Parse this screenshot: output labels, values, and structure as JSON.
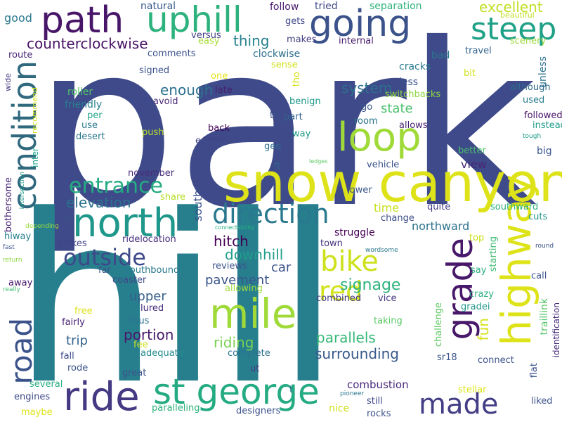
{
  "words": [
    {
      "text": "park",
      "color": "#3e4a89"
    },
    {
      "text": "hill",
      "color": "#277f8e"
    },
    {
      "text": "snow canyon",
      "color": "#dde318"
    },
    {
      "text": "highway",
      "color": "#dde318"
    },
    {
      "text": "st george",
      "color": "#25ab82"
    },
    {
      "text": "mile",
      "color": "#a0da39"
    },
    {
      "text": "ride",
      "color": "#443983"
    },
    {
      "text": "north",
      "color": "#1f988b"
    },
    {
      "text": "uphill",
      "color": "#2db27d"
    },
    {
      "text": "path",
      "color": "#481668"
    },
    {
      "text": "going",
      "color": "#3b528b"
    },
    {
      "text": "loop",
      "color": "#a0da39"
    },
    {
      "text": "condition",
      "color": "#30697e"
    },
    {
      "text": "road",
      "color": "#3b528b"
    },
    {
      "text": "grade",
      "color": "#48186a"
    },
    {
      "text": "steep",
      "color": "#1fa187"
    },
    {
      "text": "made",
      "color": "#433e85"
    },
    {
      "text": "direction",
      "color": "#2a788e"
    },
    {
      "text": "red",
      "color": "#d2e21b"
    },
    {
      "text": "bike",
      "color": "#cde11d"
    },
    {
      "text": "outside",
      "color": "#3e4989"
    },
    {
      "text": "entrance",
      "color": "#25ab82"
    },
    {
      "text": "excellent",
      "color": "#c0df25"
    },
    {
      "text": "counterclockwise",
      "color": "#471365"
    },
    {
      "text": "surrounding",
      "color": "#38598c"
    },
    {
      "text": "signage",
      "color": "#2db27d"
    },
    {
      "text": "parallels",
      "color": "#37b878"
    },
    {
      "text": "pavement",
      "color": "#39558c"
    },
    {
      "text": "combustion",
      "color": "#482979"
    },
    {
      "text": "system",
      "color": "#2e6f8e"
    },
    {
      "text": "state",
      "color": "#4ac16d"
    },
    {
      "text": "elevation",
      "color": "#2c728e"
    },
    {
      "text": "thing",
      "color": "#26828e"
    },
    {
      "text": "enough",
      "color": "#2c728e"
    },
    {
      "text": "hitch",
      "color": "#440154"
    },
    {
      "text": "downhill",
      "color": "#1f9e89"
    },
    {
      "text": "car",
      "color": "#3b528b"
    },
    {
      "text": "upper",
      "color": "#355f8d"
    },
    {
      "text": "portion",
      "color": "#481668"
    },
    {
      "text": "trip",
      "color": "#33638d"
    },
    {
      "text": "riding",
      "color": "#7ad151"
    },
    {
      "text": "northward",
      "color": "#2c728e"
    },
    {
      "text": "view",
      "color": "#482575"
    },
    {
      "text": "time",
      "color": "#c8e020"
    },
    {
      "text": "fun",
      "color": "#d5e21a"
    },
    {
      "text": "south",
      "color": "#3b528b"
    },
    {
      "text": "good",
      "color": "#2a788e"
    },
    {
      "text": "natural",
      "color": "#38598c"
    },
    {
      "text": "follow",
      "color": "#481a6c"
    },
    {
      "text": "tried",
      "color": "#3f4788"
    },
    {
      "text": "separation",
      "color": "#2db27d"
    },
    {
      "text": "beautiful",
      "color": "#c2df23"
    },
    {
      "text": "versus",
      "color": "#424086"
    },
    {
      "text": "gets",
      "color": "#404688"
    },
    {
      "text": "makes",
      "color": "#433e85"
    },
    {
      "text": "internal",
      "color": "#481b6d"
    },
    {
      "text": "travel",
      "color": "#33638d"
    },
    {
      "text": "scenery",
      "color": "#9bd93c"
    },
    {
      "text": "route",
      "color": "#482878"
    },
    {
      "text": "easy",
      "color": "#a8db34"
    },
    {
      "text": "clockwise",
      "color": "#2d708e"
    },
    {
      "text": "comments",
      "color": "#3b528b"
    },
    {
      "text": "sense",
      "color": "#d0e11c"
    },
    {
      "text": "bad",
      "color": "#2a788e"
    },
    {
      "text": "cracks",
      "color": "#297b8e"
    },
    {
      "text": "unless",
      "color": "#2c728e"
    },
    {
      "text": "signed",
      "color": "#3b518b"
    },
    {
      "text": "one",
      "color": "#e7e419"
    },
    {
      "text": "tho",
      "color": "#d8e219"
    },
    {
      "text": "less",
      "color": "#3b528b"
    },
    {
      "text": "bit",
      "color": "#d2e21b"
    },
    {
      "text": "although",
      "color": "#2f6b8e"
    },
    {
      "text": "wide",
      "color": "#443983"
    },
    {
      "text": "roller",
      "color": "#54c568"
    },
    {
      "text": "late",
      "color": "#481f70"
    },
    {
      "text": "benign",
      "color": "#1f998a"
    },
    {
      "text": "switchbacks",
      "color": "#90d743"
    },
    {
      "text": "used",
      "color": "#287d8e"
    },
    {
      "text": "recommend",
      "color": "#d2e21b"
    },
    {
      "text": "friendly",
      "color": "#277f8e"
    },
    {
      "text": "avoid",
      "color": "#482878"
    },
    {
      "text": "go",
      "color": "#39568c"
    },
    {
      "text": "followed",
      "color": "#481467"
    },
    {
      "text": "per",
      "color": "#20a486"
    },
    {
      "text": "th",
      "color": "#3b528b"
    },
    {
      "text": "part",
      "color": "#33638d"
    },
    {
      "text": "instead",
      "color": "#1e9c89"
    },
    {
      "text": "use",
      "color": "#2a788e"
    },
    {
      "text": "room",
      "color": "#2c728e"
    },
    {
      "text": "allows",
      "color": "#482173"
    },
    {
      "text": "tough",
      "color": "#1fa088"
    },
    {
      "text": "desert",
      "color": "#2a788e"
    },
    {
      "text": "back",
      "color": "#440154"
    },
    {
      "text": "push",
      "color": "#b8de29"
    },
    {
      "text": "mostly",
      "color": "#424086"
    },
    {
      "text": "way",
      "color": "#1f9a8a"
    },
    {
      "text": "e",
      "color": "#404588"
    },
    {
      "text": "geo",
      "color": "#2f6c8e"
    },
    {
      "text": "better",
      "color": "#4ac16d"
    },
    {
      "text": "big",
      "color": "#39568c"
    },
    {
      "text": "inter",
      "color": "#1fa088"
    },
    {
      "text": "ledges",
      "color": "#5cc863"
    },
    {
      "text": "ft",
      "color": "#33638d"
    },
    {
      "text": "vehicle",
      "color": "#3b528b"
    },
    {
      "text": "november",
      "color": "#472d7b"
    },
    {
      "text": "bothersome",
      "color": "#482677"
    },
    {
      "text": "intersection",
      "color": "#1f998a"
    },
    {
      "text": "share",
      "color": "#b5de2b"
    },
    {
      "text": "lower",
      "color": "#39558c"
    },
    {
      "text": "quite",
      "color": "#433e85"
    },
    {
      "text": "southward",
      "color": "#2db27d"
    },
    {
      "text": "cuts",
      "color": "#1f948c"
    },
    {
      "text": "depending",
      "color": "#9bd93c"
    },
    {
      "text": "connectability",
      "color": "#27ad81"
    },
    {
      "text": "change",
      "color": "#3d4e8a"
    },
    {
      "text": "st",
      "color": "#3b528b"
    },
    {
      "text": "struggle",
      "color": "#440154"
    },
    {
      "text": "hiway",
      "color": "#26818e"
    },
    {
      "text": "ebikes",
      "color": "#404588"
    },
    {
      "text": "ridelocation",
      "color": "#462f7e"
    },
    {
      "text": "top",
      "color": "#cde11d"
    },
    {
      "text": "town",
      "color": "#46327e"
    },
    {
      "text": "starting",
      "color": "#3fbc73"
    },
    {
      "text": "fast",
      "color": "#3b528b"
    },
    {
      "text": "far",
      "color": "#3b528b"
    },
    {
      "text": "southbound",
      "color": "#29798e"
    },
    {
      "text": "reviews",
      "color": "#3b528b"
    },
    {
      "text": "wordsome",
      "color": "#2a788e"
    },
    {
      "text": "round",
      "color": "#3b528b"
    },
    {
      "text": "return",
      "color": "#8ed645"
    },
    {
      "text": "coaster",
      "color": "#3e4a89"
    },
    {
      "text": "say",
      "color": "#29af7f"
    },
    {
      "text": "call",
      "color": "#3b528b"
    },
    {
      "text": "away",
      "color": "#481668"
    },
    {
      "text": "allowing",
      "color": "#9dd93b"
    },
    {
      "text": "traillink",
      "color": "#56c667"
    },
    {
      "text": "really",
      "color": "#44bf70"
    },
    {
      "text": "crazy",
      "color": "#2ab07f"
    },
    {
      "text": "vice",
      "color": "#443a83"
    },
    {
      "text": "combined",
      "color": "#443a83"
    },
    {
      "text": "gradei",
      "color": "#1f968b"
    },
    {
      "text": "identification",
      "color": "#472c7a"
    },
    {
      "text": "lured",
      "color": "#472c7a"
    },
    {
      "text": "free",
      "color": "#dde318"
    },
    {
      "text": "challenge",
      "color": "#5ec962"
    },
    {
      "text": "fairly",
      "color": "#482173"
    },
    {
      "text": "thus",
      "color": "#2c728e"
    },
    {
      "text": "taking",
      "color": "#5ac864"
    },
    {
      "text": "fee",
      "color": "#cde11d"
    },
    {
      "text": "adequate",
      "color": "#238a8d"
    },
    {
      "text": "fall",
      "color": "#3e4989"
    },
    {
      "text": "complete",
      "color": "#2c728e"
    },
    {
      "text": "rode",
      "color": "#3b528b"
    },
    {
      "text": "great",
      "color": "#3b528b"
    },
    {
      "text": "ut",
      "color": "#453882"
    },
    {
      "text": "sr18",
      "color": "#39558c"
    },
    {
      "text": "connect",
      "color": "#3b528b"
    },
    {
      "text": "flat",
      "color": "#3b528b"
    },
    {
      "text": "several",
      "color": "#29af7f"
    },
    {
      "text": "engines",
      "color": "#3e4989"
    },
    {
      "text": "t",
      "color": "#2d708e"
    },
    {
      "text": "pioneer",
      "color": "#2a788e"
    },
    {
      "text": "stellar",
      "color": "#dde318"
    },
    {
      "text": "liked",
      "color": "#3b528b"
    },
    {
      "text": "maybe",
      "color": "#dfe318"
    },
    {
      "text": "paralleling",
      "color": "#2db27d"
    },
    {
      "text": "designers",
      "color": "#3b528b"
    },
    {
      "text": "nice",
      "color": "#cde11d"
    },
    {
      "text": "still",
      "color": "#3e4989"
    },
    {
      "text": "rocks",
      "color": "#3b528b"
    }
  ]
}
